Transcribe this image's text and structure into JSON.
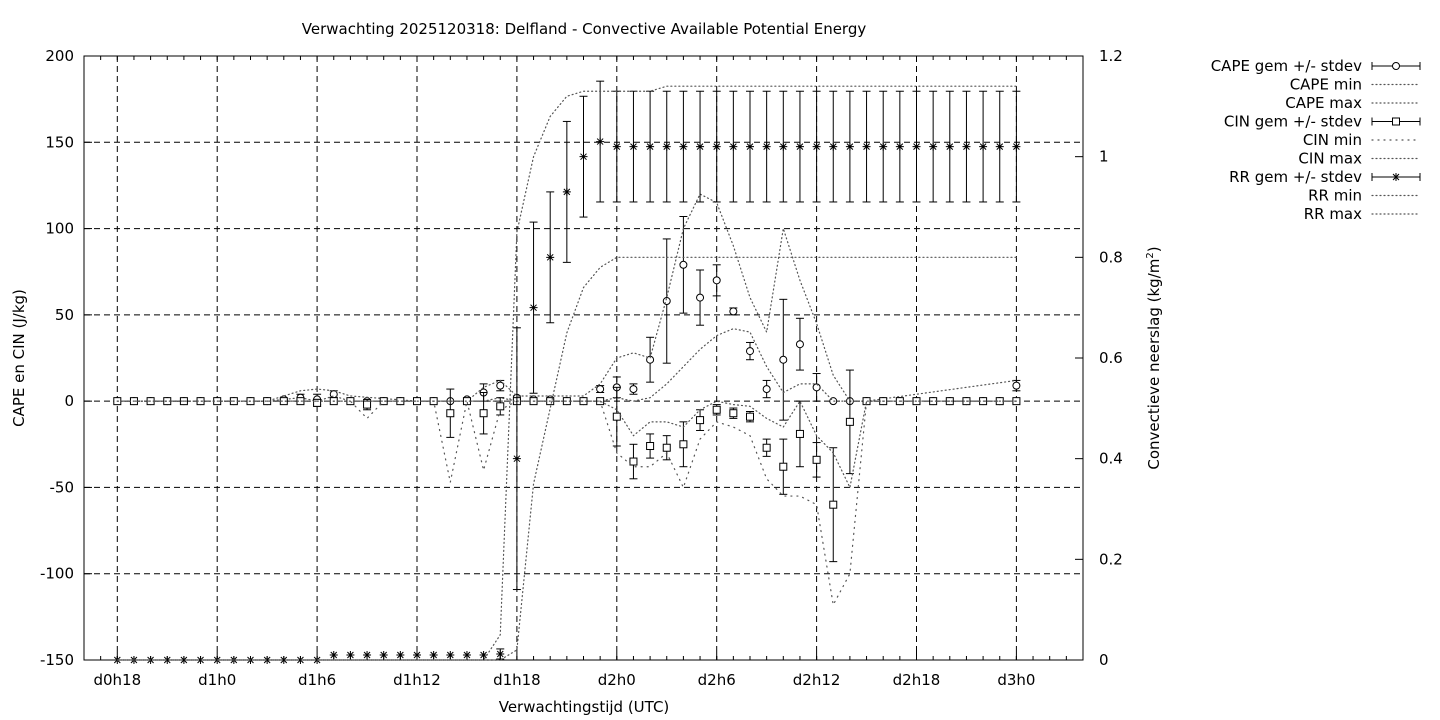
{
  "chart_data": {
    "type": "line",
    "title": "Verwachting 2025120318: Delfland - Convective Available Potential Energy",
    "xlabel": "Verwachtingstijd (UTC)",
    "ylabel": "CAPE en CIN (J/kg)",
    "y2label": "Convectieve neerslag (kg/m",
    "y2label_sup": "2",
    "y2label_close": ")",
    "x_unit": "hours since d0h18",
    "xlim": [
      -2,
      58
    ],
    "ylim": [
      -150,
      200
    ],
    "y2lim": [
      0,
      1.2
    ],
    "x_ticks": [
      {
        "x": 0,
        "label": "d0h18"
      },
      {
        "x": 6,
        "label": "d1h0"
      },
      {
        "x": 12,
        "label": "d1h6"
      },
      {
        "x": 18,
        "label": "d1h12"
      },
      {
        "x": 24,
        "label": "d1h18"
      },
      {
        "x": 30,
        "label": "d2h0"
      },
      {
        "x": 36,
        "label": "d2h6"
      },
      {
        "x": 42,
        "label": "d2h12"
      },
      {
        "x": 48,
        "label": "d2h18"
      },
      {
        "x": 54,
        "label": "d3h0"
      }
    ],
    "y_ticks": [
      "-150",
      "-100",
      "-50",
      "0",
      "50",
      "100",
      "150",
      "200"
    ],
    "y2_ticks": [
      "0",
      "0.2",
      "0.4",
      "0.6",
      "0.8",
      "1",
      "1.2"
    ],
    "grid": true,
    "legend_position": "outside-right",
    "legend": [
      {
        "label": "CAPE gem +/- stdev",
        "style": "errorbar",
        "marker": "circle"
      },
      {
        "label": "CAPE min",
        "style": "dotted"
      },
      {
        "label": "CAPE max",
        "style": "dotted"
      },
      {
        "label": "CIN gem +/- stdev",
        "style": "errorbar",
        "marker": "square"
      },
      {
        "label": "CIN min",
        "style": "dotted-sparse"
      },
      {
        "label": "CIN max",
        "style": "dotted"
      },
      {
        "label": "RR gem +/- stdev",
        "style": "errorbar",
        "marker": "star"
      },
      {
        "label": "RR min",
        "style": "dotted"
      },
      {
        "label": "RR max",
        "style": "dotted"
      }
    ],
    "series": [
      {
        "name": "CAPE gem +/- stdev",
        "axis": "y1",
        "marker": "circle",
        "x": [
          0,
          1,
          2,
          3,
          4,
          5,
          6,
          7,
          8,
          9,
          10,
          11,
          12,
          13,
          14,
          15,
          16,
          17,
          18,
          19,
          20,
          21,
          22,
          23,
          24,
          25,
          26,
          27,
          28,
          29,
          30,
          31,
          32,
          33,
          34,
          35,
          36,
          37,
          38,
          39,
          40,
          41,
          42,
          43,
          44,
          45,
          46,
          47,
          48,
          49,
          50,
          51,
          52,
          53,
          54
        ],
        "mean": [
          0,
          0,
          0,
          0,
          0,
          0,
          0,
          0,
          0,
          0,
          1,
          2,
          1,
          4,
          0,
          0,
          0,
          0,
          0,
          0,
          0,
          1,
          5,
          9,
          2,
          1,
          1,
          0,
          0,
          7,
          8,
          7,
          24,
          58,
          79,
          60,
          70,
          52,
          29,
          7,
          24,
          33,
          8,
          0,
          0,
          0,
          0,
          0,
          0,
          0,
          0,
          0,
          0,
          0,
          9
        ],
        "stdev": [
          0,
          0,
          0,
          0,
          0,
          0,
          0,
          0,
          0,
          0,
          0,
          2,
          3,
          2,
          0,
          0,
          0,
          0,
          0,
          0,
          0,
          0,
          5,
          3,
          1,
          0,
          0,
          0,
          0,
          2,
          6,
          3,
          13,
          36,
          28,
          16,
          9,
          2,
          5,
          5,
          35,
          15,
          8,
          0,
          0,
          0,
          0,
          0,
          0,
          0,
          0,
          0,
          0,
          0,
          3
        ]
      },
      {
        "name": "CAPE min",
        "axis": "y1",
        "x": [
          0,
          9,
          10,
          11,
          12,
          13,
          14,
          18,
          22,
          23,
          24,
          28,
          29,
          30,
          31,
          32,
          33,
          34,
          35,
          36,
          37,
          38,
          39,
          40,
          41,
          42,
          43,
          44,
          45,
          54
        ],
        "y": [
          0,
          0,
          1,
          2,
          0,
          3,
          0,
          0,
          0,
          2,
          0,
          0,
          0,
          2,
          0,
          2,
          10,
          20,
          30,
          38,
          42,
          40,
          20,
          5,
          10,
          10,
          0,
          0,
          0,
          0
        ]
      },
      {
        "name": "CAPE max",
        "axis": "y1",
        "x": [
          0,
          9,
          10,
          11,
          12,
          13,
          14,
          18,
          21,
          22,
          23,
          24,
          28,
          29,
          30,
          31,
          32,
          33,
          34,
          35,
          36,
          37,
          38,
          39,
          40,
          41,
          42,
          43,
          44,
          45,
          54
        ],
        "y": [
          0,
          0,
          3,
          6,
          7,
          6,
          3,
          0,
          0,
          8,
          12,
          3,
          3,
          10,
          25,
          28,
          25,
          60,
          100,
          120,
          115,
          90,
          60,
          40,
          100,
          70,
          45,
          15,
          0,
          0,
          12
        ]
      },
      {
        "name": "CIN gem +/- stdev",
        "axis": "y1",
        "marker": "square",
        "x": [
          0,
          1,
          2,
          3,
          4,
          5,
          6,
          7,
          8,
          9,
          10,
          11,
          12,
          13,
          14,
          15,
          16,
          17,
          18,
          19,
          20,
          21,
          22,
          23,
          24,
          25,
          26,
          27,
          28,
          29,
          30,
          31,
          32,
          33,
          34,
          35,
          36,
          37,
          38,
          39,
          40,
          41,
          42,
          43,
          44,
          45,
          46,
          47,
          48,
          49,
          50,
          51,
          52,
          53,
          54
        ],
        "mean": [
          0,
          0,
          0,
          0,
          0,
          0,
          0,
          0,
          0,
          0,
          0,
          0,
          -1,
          0,
          0,
          -2,
          0,
          0,
          0,
          0,
          -7,
          0,
          -7,
          -3,
          0,
          0,
          0,
          0,
          0,
          0,
          -9,
          -35,
          -26,
          -27,
          -25,
          -11,
          -5,
          -7,
          -9,
          -27,
          -38,
          -19,
          -34,
          -60,
          -12,
          0,
          0,
          0,
          0,
          0,
          0,
          0,
          0,
          0,
          0
        ],
        "stdev": [
          0,
          0,
          0,
          0,
          0,
          0,
          0,
          0,
          0,
          0,
          0,
          0,
          2,
          0,
          0,
          3,
          0,
          0,
          0,
          0,
          14,
          0,
          12,
          5,
          0,
          0,
          0,
          0,
          0,
          0,
          17,
          10,
          7,
          7,
          13,
          6,
          3,
          3,
          3,
          5,
          16,
          19,
          10,
          33,
          30,
          0,
          0,
          0,
          0,
          0,
          0,
          0,
          0,
          0,
          0
        ]
      },
      {
        "name": "CIN min",
        "axis": "y1",
        "x": [
          0,
          14,
          15,
          16,
          17,
          18,
          19,
          20,
          21,
          22,
          23,
          24,
          28,
          29,
          30,
          31,
          32,
          33,
          34,
          35,
          36,
          37,
          38,
          39,
          40,
          41,
          42,
          43,
          44,
          45,
          54
        ],
        "y": [
          0,
          0,
          -10,
          0,
          0,
          0,
          0,
          -47,
          0,
          -40,
          -5,
          0,
          0,
          0,
          -30,
          -38,
          -38,
          -30,
          -50,
          -22,
          -12,
          -15,
          -20,
          -45,
          -55,
          -55,
          -60,
          -118,
          -100,
          0,
          0
        ]
      },
      {
        "name": "CIN max",
        "axis": "y1",
        "x": [
          0,
          29,
          30,
          31,
          32,
          33,
          34,
          35,
          36,
          37,
          38,
          39,
          40,
          41,
          42,
          43,
          44,
          45,
          54
        ],
        "y": [
          0,
          0,
          -5,
          -20,
          -12,
          -12,
          -15,
          -5,
          0,
          -2,
          -3,
          -10,
          -15,
          0,
          -20,
          -30,
          -50,
          0,
          0
        ]
      },
      {
        "name": "RR gem +/- stdev",
        "axis": "y2",
        "marker": "star",
        "x": [
          0,
          1,
          2,
          3,
          4,
          5,
          6,
          7,
          8,
          9,
          10,
          11,
          12,
          13,
          14,
          15,
          16,
          17,
          18,
          19,
          20,
          21,
          22,
          23,
          24,
          25,
          26,
          27,
          28,
          29,
          30,
          31,
          32,
          33,
          34,
          35,
          36,
          37,
          38,
          39,
          40,
          41,
          42,
          43,
          44,
          45,
          46,
          47,
          48,
          49,
          50,
          51,
          52,
          53,
          54
        ],
        "mean": [
          0,
          0,
          0,
          0,
          0,
          0,
          0,
          0,
          0,
          0,
          0,
          0,
          0,
          0.01,
          0.01,
          0.01,
          0.01,
          0.01,
          0.01,
          0.01,
          0.01,
          0.01,
          0.01,
          0.012,
          0.4,
          0.7,
          0.8,
          0.93,
          1.0,
          1.03,
          1.02,
          1.02,
          1.02,
          1.02,
          1.02,
          1.02,
          1.02,
          1.02,
          1.02,
          1.02,
          1.02,
          1.02,
          1.02,
          1.02,
          1.02,
          1.02,
          1.02,
          1.02,
          1.02,
          1.02,
          1.02,
          1.02,
          1.02,
          1.02,
          1.02
        ],
        "stdev": [
          0,
          0,
          0,
          0,
          0,
          0,
          0,
          0,
          0,
          0,
          0,
          0,
          0,
          0,
          0,
          0,
          0,
          0,
          0,
          0,
          0,
          0,
          0,
          0.01,
          0.26,
          0.17,
          0.13,
          0.14,
          0.12,
          0.12,
          0.11,
          0.11,
          0.11,
          0.11,
          0.11,
          0.11,
          0.11,
          0.11,
          0.11,
          0.11,
          0.11,
          0.11,
          0.11,
          0.11,
          0.11,
          0.11,
          0.11,
          0.11,
          0.11,
          0.11,
          0.11,
          0.11,
          0.11,
          0.11,
          0.11
        ]
      },
      {
        "name": "RR min",
        "axis": "y2",
        "x": [
          0,
          22,
          23,
          24,
          25,
          26,
          27,
          28,
          29,
          30,
          31,
          32,
          33,
          34,
          35,
          36,
          37,
          38,
          39,
          40,
          41,
          42,
          43,
          44,
          45,
          54
        ],
        "y": [
          0,
          0,
          0,
          0.02,
          0.35,
          0.5,
          0.65,
          0.74,
          0.78,
          0.8,
          0.8,
          0.8,
          0.8,
          0.8,
          0.8,
          0.8,
          0.8,
          0.8,
          0.8,
          0.8,
          0.8,
          0.8,
          0.8,
          0.8,
          0.8,
          0.8
        ]
      },
      {
        "name": "RR max",
        "axis": "y2",
        "x": [
          0,
          22,
          23,
          24,
          25,
          26,
          27,
          28,
          29,
          30,
          31,
          32,
          33,
          34,
          35,
          36,
          37,
          38,
          39,
          40,
          41,
          42,
          43,
          44,
          45,
          54
        ],
        "y": [
          0,
          0,
          0.05,
          0.85,
          1.0,
          1.08,
          1.12,
          1.13,
          1.13,
          1.13,
          1.13,
          1.13,
          1.14,
          1.14,
          1.14,
          1.14,
          1.14,
          1.14,
          1.14,
          1.14,
          1.14,
          1.14,
          1.14,
          1.14,
          1.14,
          1.14
        ]
      }
    ]
  }
}
